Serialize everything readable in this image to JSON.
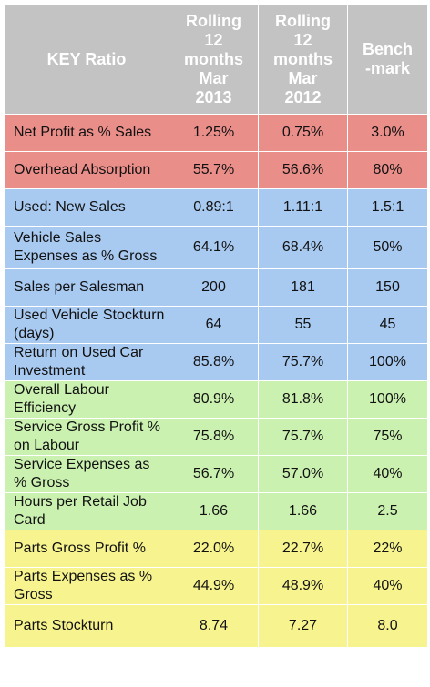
{
  "table": {
    "headers": [
      {
        "name": "header-key-ratio",
        "text": "KEY Ratio"
      },
      {
        "name": "header-rolling-2013",
        "text": "Rolling\n12\nmonths\nMar\n2013"
      },
      {
        "name": "header-rolling-2012",
        "text": "Rolling\n12\nmonths\nMar\n2012"
      },
      {
        "name": "header-benchmark",
        "text": "Bench\n-mark"
      }
    ],
    "colors": {
      "header": "#c3c3c3",
      "profit_rows": "#ea8e8a",
      "sales_rows": "#a8c9f0",
      "service_rows": "#cbf1b1",
      "parts_rows": "#f7f48f"
    },
    "rows": [
      {
        "group": "red",
        "label": "Net Profit as % Sales",
        "v2013": "1.25%",
        "v2012": "0.75%",
        "benchmark": "3.0%"
      },
      {
        "group": "red",
        "label": "Overhead Absorption",
        "v2013": "55.7%",
        "v2012": "56.6%",
        "benchmark": "80%"
      },
      {
        "group": "blue",
        "label": "Used: New Sales",
        "v2013": "0.89:1",
        "v2012": "1.11:1",
        "benchmark": "1.5:1"
      },
      {
        "group": "blue",
        "label": "Vehicle Sales Expenses as % Gross",
        "v2013": "64.1%",
        "v2012": "68.4%",
        "benchmark": "50%"
      },
      {
        "group": "blue",
        "label": "Sales per Salesman",
        "v2013": "200",
        "v2012": "181",
        "benchmark": "150"
      },
      {
        "group": "blue",
        "label": "Used Vehicle Stockturn (days)",
        "v2013": "64",
        "v2012": "55",
        "benchmark": "45"
      },
      {
        "group": "blue",
        "label": "Return on Used Car Investment",
        "v2013": "85.8%",
        "v2012": "75.7%",
        "benchmark": "100%"
      },
      {
        "group": "green",
        "label": "Overall Labour Efficiency",
        "v2013": "80.9%",
        "v2012": "81.8%",
        "benchmark": "100%"
      },
      {
        "group": "green",
        "label": "Service Gross Profit % on Labour",
        "v2013": "75.8%",
        "v2012": "75.7%",
        "benchmark": "75%"
      },
      {
        "group": "green",
        "label": "Service Expenses as % Gross",
        "v2013": "56.7%",
        "v2012": "57.0%",
        "benchmark": "40%"
      },
      {
        "group": "green",
        "label": "Hours per Retail Job Card",
        "v2013": "1.66",
        "v2012": "1.66",
        "benchmark": "2.5"
      },
      {
        "group": "yellow",
        "label": "Parts Gross Profit %",
        "v2013": "22.0%",
        "v2012": "22.7%",
        "benchmark": "22%"
      },
      {
        "group": "yellow",
        "label": "Parts Expenses as % Gross",
        "v2013": "44.9%",
        "v2012": "48.9%",
        "benchmark": "40%"
      },
      {
        "group": "yellow",
        "label": "Parts Stockturn",
        "v2013": "8.74",
        "v2012": "7.27",
        "benchmark": "8.0"
      }
    ]
  }
}
